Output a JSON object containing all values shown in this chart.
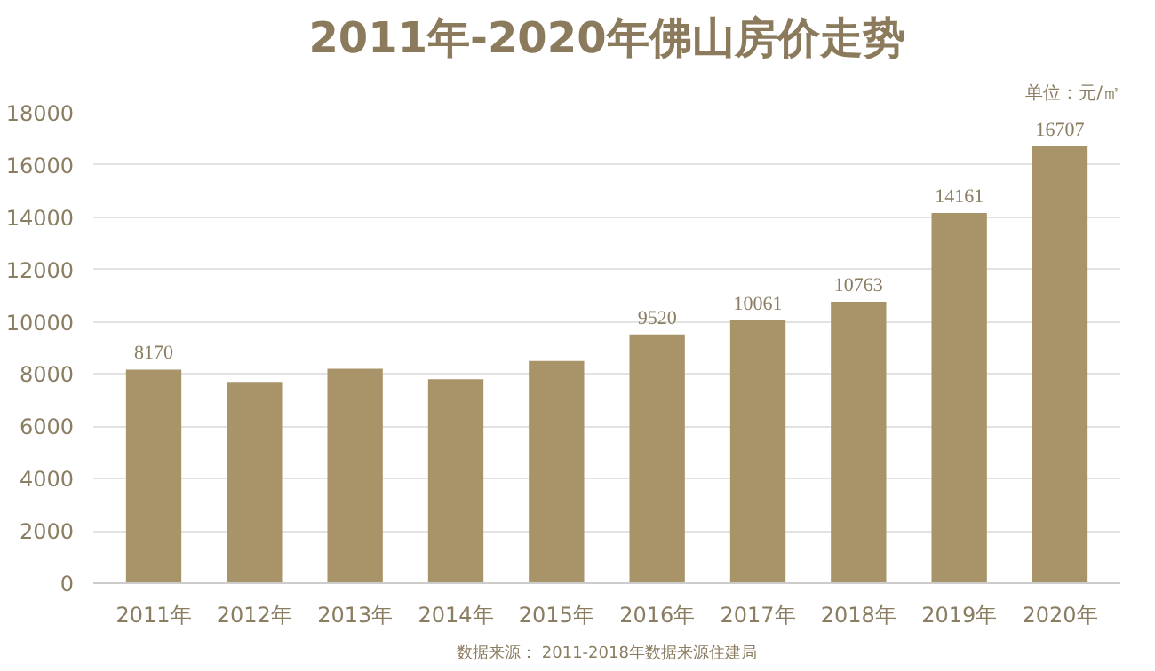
{
  "chart_data": {
    "type": "bar",
    "title": "2011年-2020年佛山房价走势",
    "subtitle": "单位：元/㎡",
    "categories": [
      "2011年",
      "2012年",
      "2013年",
      "2014年",
      "2015年",
      "2016年",
      "2017年",
      "2018年",
      "2019年",
      "2020年"
    ],
    "values": [
      8170,
      7700,
      8200,
      7800,
      8500,
      9520,
      10061,
      10763,
      14161,
      16707
    ],
    "value_labels": [
      "8170",
      null,
      null,
      null,
      null,
      "9520",
      "10061",
      "10763",
      "14161",
      "16707"
    ],
    "color": "#a89468",
    "ylim": [
      0,
      18000
    ],
    "yticks": [
      0,
      2000,
      4000,
      6000,
      8000,
      10000,
      12000,
      14000,
      16000,
      18000
    ],
    "grid": "y",
    "annotations": [
      "数据来源： 2011-2018年数据来源住建局"
    ]
  }
}
